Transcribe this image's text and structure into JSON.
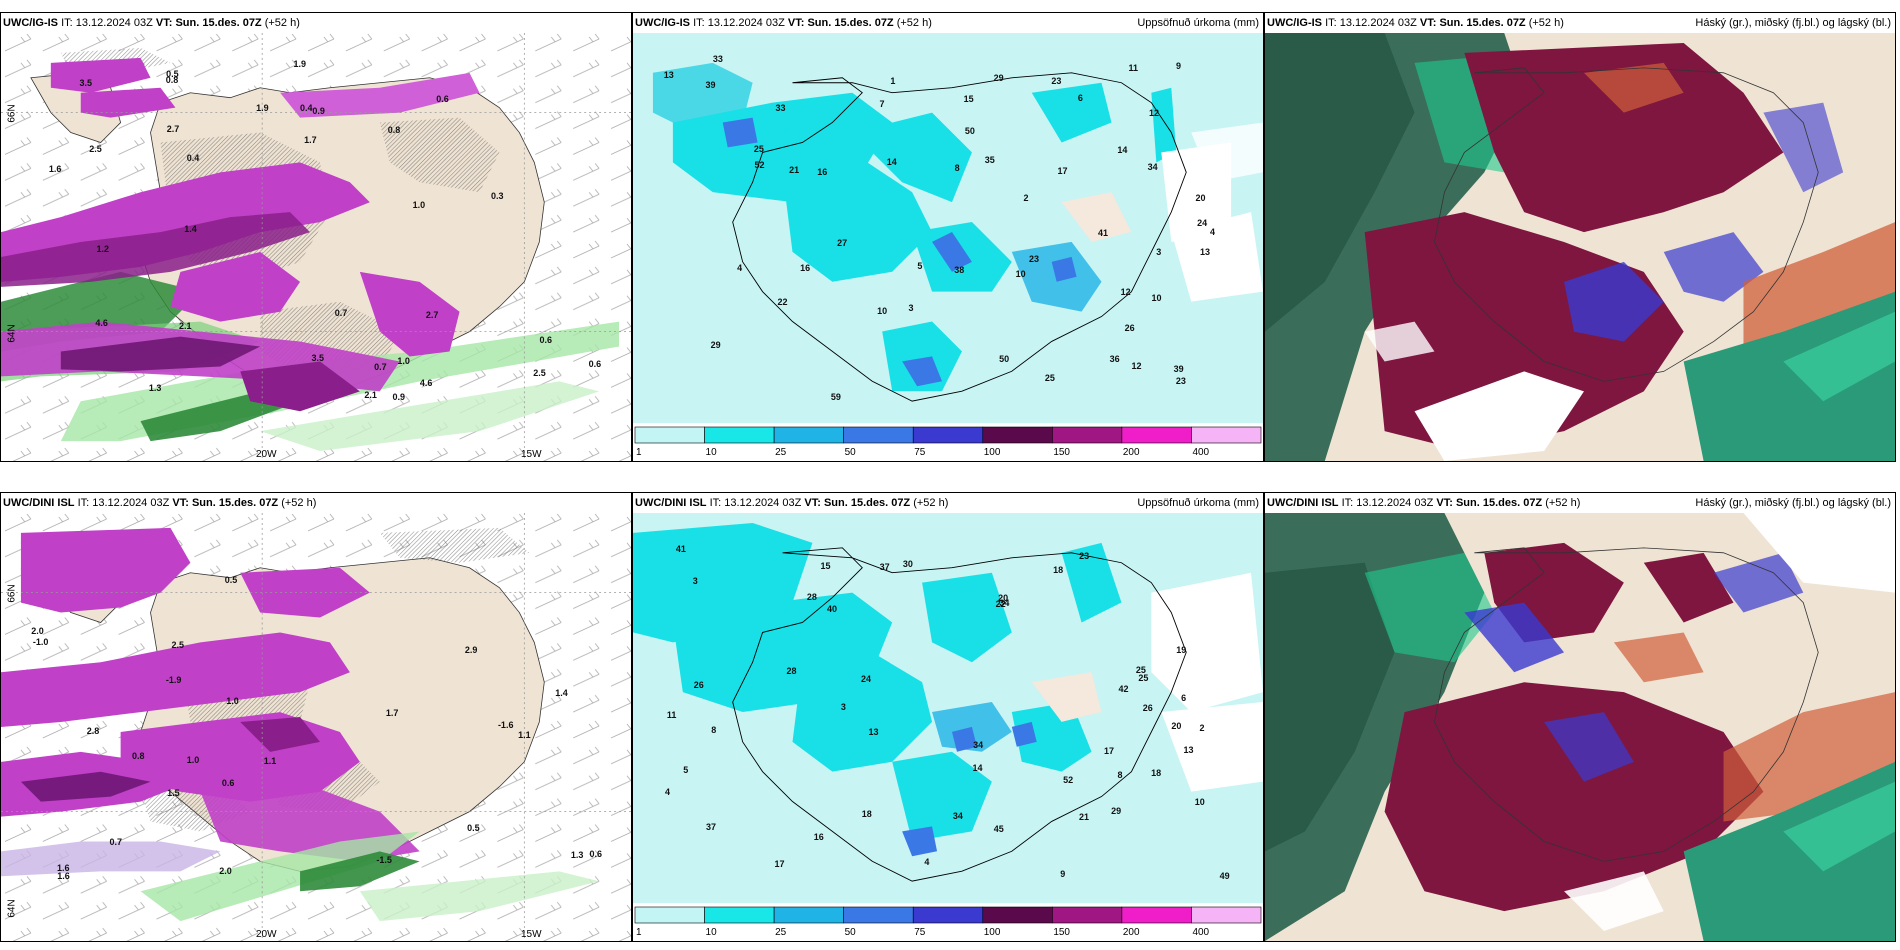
{
  "panels": {
    "r1c1": {
      "model": "UWC/IG-IS",
      "issue_prefix": "IT:",
      "issue": "13.12.2024 03Z",
      "vt_prefix": "VT:",
      "vt": "Sun. 15.des. 07Z",
      "lead": "(+52 h)"
    },
    "r1c2": {
      "model": "UWC/IG-IS",
      "issue_prefix": "IT:",
      "issue": "13.12.2024 03Z",
      "vt_prefix": "VT:",
      "vt": "Sun. 15.des. 07Z",
      "lead": "(+52 h)",
      "title": "Uppsöfnuð úrkoma (mm)"
    },
    "r1c3": {
      "model": "UWC/IG-IS",
      "issue_prefix": "IT:",
      "issue": "13.12.2024 03Z",
      "vt_prefix": "VT:",
      "vt": "Sun. 15.des. 07Z",
      "lead": "(+52 h)",
      "title": "Háský (gr.), miðský (fj.bl.) og lágský (bl.)"
    },
    "r2c1": {
      "model": "UWC/DINI ISL",
      "issue_prefix": "IT:",
      "issue": "13.12.2024 03Z",
      "vt_prefix": "VT:",
      "vt": "Sun. 15.des. 07Z",
      "lead": "(+52 h)"
    },
    "r2c2": {
      "model": "UWC/DINI ISL",
      "issue_prefix": "IT:",
      "issue": "13.12.2024 03Z",
      "vt_prefix": "VT:",
      "vt": "Sun. 15.des. 07Z",
      "lead": "(+52 h)",
      "title": "Uppsöfnuð úrkoma (mm)"
    },
    "r2c3": {
      "model": "UWC/DINI ISL",
      "issue_prefix": "IT:",
      "issue": "13.12.2024 03Z",
      "vt_prefix": "VT:",
      "vt": "Sun. 15.des. 07Z",
      "lead": "(+52 h)",
      "title": "Háský (gr.), miðský (fj.bl.) og lágský (bl.)"
    }
  },
  "grid_labels": {
    "lat_top": "66N",
    "lat_bottom": "64N",
    "lon_left": "20W",
    "lon_right": "15W"
  },
  "legend": {
    "ticks": [
      "1",
      "10",
      "25",
      "50",
      "75",
      "100",
      "150",
      "200",
      "400"
    ],
    "colors": [
      "#c4f5f5",
      "#19e6e6",
      "#1fb3e6",
      "#3a78e6",
      "#3a3ad0",
      "#5a0a4a",
      "#a01682",
      "#f01ec8",
      "#f5b4f5"
    ]
  },
  "temp_labels_r1": [
    "1.7",
    "1.3",
    "0.4",
    "0.4",
    "1.0",
    "2.1",
    "0.5",
    "1.6",
    "0.6",
    "2.5",
    "2.1",
    "0.7",
    "1.9",
    "2.7",
    "3.5",
    "1.9",
    "4.6",
    "1.2",
    "0.8",
    "2.5",
    "0.6",
    "0.8",
    "0.9",
    "1.0",
    "0.7",
    "1.4",
    "2.7",
    "3.5",
    "4.6",
    "0.3",
    "0.6",
    "0.9"
  ],
  "temp_labels_r2": [
    "1.1",
    "1.6",
    "2.9",
    "1.5",
    "1.0",
    "-1.0",
    "-1.5",
    "-1.6",
    "2.0",
    "1.1",
    "1.6",
    "2.8",
    "2.0",
    "2.5",
    "1.7",
    "1.0",
    "0.5",
    "1.4",
    "-1.9",
    "1.3",
    "0.6",
    "0.5",
    "0.7",
    "0.8",
    "0.6"
  ],
  "precip_labels_r1": [
    "12",
    "15",
    "13",
    "10",
    "4",
    "3",
    "5",
    "6",
    "2",
    "23",
    "25",
    "20",
    "29",
    "35",
    "23",
    "14",
    "27",
    "22",
    "39",
    "17",
    "12",
    "21",
    "33",
    "34",
    "29",
    "36",
    "25",
    "26",
    "52",
    "50",
    "41",
    "38",
    "24",
    "16",
    "33",
    "39",
    "23",
    "50",
    "59",
    "16",
    "12",
    "13",
    "10",
    "8",
    "7",
    "14",
    "11",
    "9",
    "10",
    "4",
    "3",
    "1"
  ],
  "precip_labels_r2": [
    "13",
    "18",
    "26",
    "22",
    "3",
    "4",
    "8",
    "17",
    "18",
    "24",
    "25",
    "16",
    "14",
    "34",
    "26",
    "21",
    "17",
    "37",
    "28",
    "23",
    "20",
    "30",
    "29",
    "41",
    "45",
    "40",
    "49",
    "37",
    "34",
    "25",
    "28",
    "19",
    "20",
    "18",
    "52",
    "34",
    "42",
    "15",
    "11",
    "13",
    "10",
    "9",
    "5",
    "3",
    "2",
    "4",
    "6",
    "8"
  ]
}
